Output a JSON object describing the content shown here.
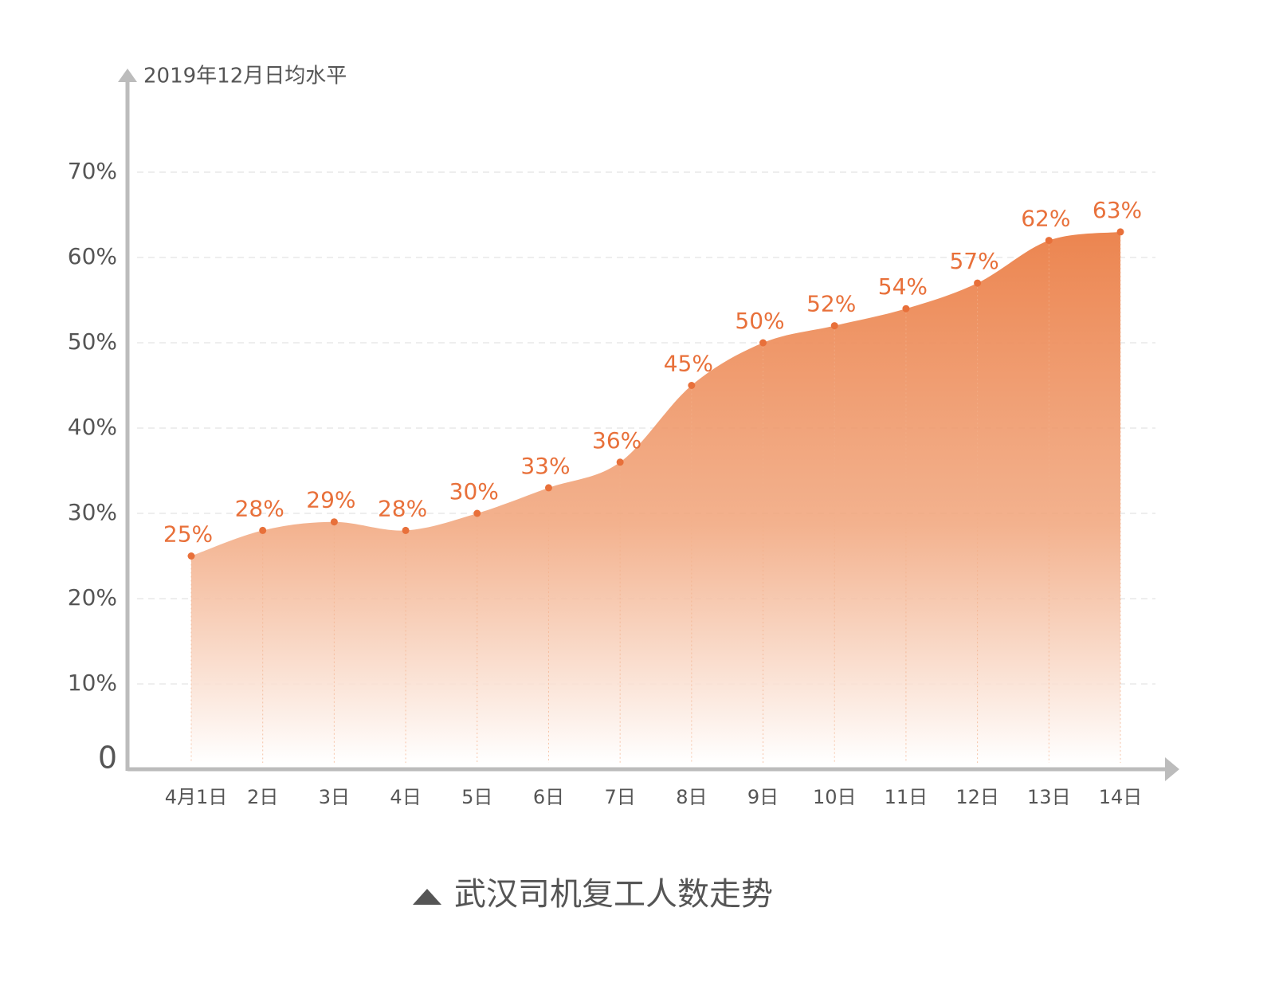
{
  "chart_data": {
    "type": "area",
    "title": "武汉司机复工人数走势",
    "y_axis_label": "2019年12月日均水平",
    "categories": [
      "4月1日",
      "2日",
      "3日",
      "4日",
      "5日",
      "6日",
      "7日",
      "8日",
      "9日",
      "10日",
      "11日",
      "12日",
      "13日",
      "14日"
    ],
    "values": [
      25,
      28,
      29,
      28,
      30,
      33,
      36,
      45,
      50,
      52,
      54,
      57,
      62,
      63
    ],
    "value_labels": [
      "25%",
      "28%",
      "29%",
      "28%",
      "30%",
      "33%",
      "36%",
      "45%",
      "50%",
      "52%",
      "54%",
      "57%",
      "62%",
      "63%"
    ],
    "color": "#e8703a",
    "ylim": [
      0,
      80
    ],
    "yticks": [
      0,
      {
        "value": 10,
        "label": "10%"
      },
      {
        "value": 20,
        "label": "20%"
      },
      {
        "value": 30,
        "label": "30%"
      },
      {
        "value": 40,
        "label": "40%"
      },
      {
        "value": 50,
        "label": "50%"
      },
      {
        "value": 60,
        "label": "60%"
      },
      {
        "value": 70,
        "label": "70%"
      }
    ],
    "grid": true
  }
}
